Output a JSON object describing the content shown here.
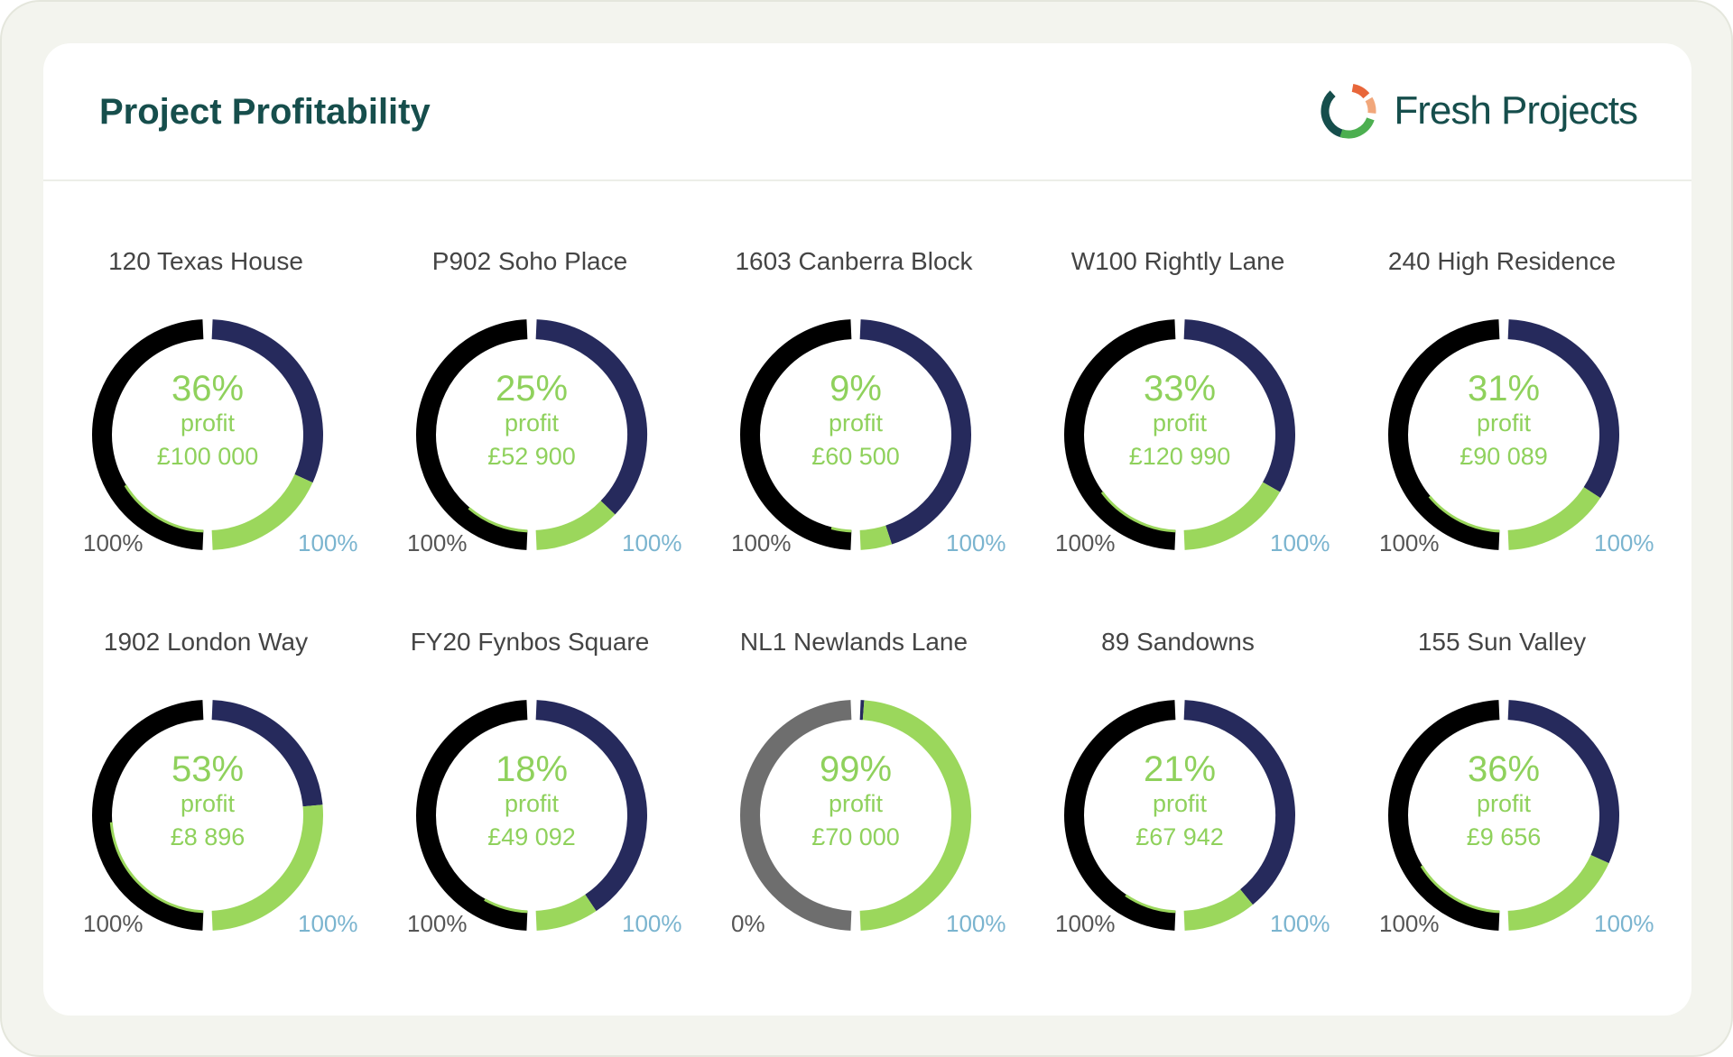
{
  "header": {
    "title": "Project Profitability",
    "brand_name": "Fresh Projects",
    "brand_icon": "fresh-projects-ring-logo"
  },
  "colors": {
    "cost": "#000000",
    "remaining": "#262a5c",
    "profit": "#9bd75c",
    "zero_cost": "#6e6e6e",
    "text_green": "#8fd15c",
    "title": "#164e4c"
  },
  "chart_data": [
    {
      "type": "pie",
      "title": "120 Texas House",
      "profit_pct": 36,
      "profit_label": "36%",
      "profit_amount": "£100 000",
      "label": "profit",
      "left_label": "100%",
      "right_label": "100%",
      "cost_pct": 100,
      "navy_pct": 64,
      "green_pct": 36
    },
    {
      "type": "pie",
      "title": "P902 Soho Place",
      "profit_pct": 25,
      "profit_label": "25%",
      "profit_amount": "£52 900",
      "label": "profit",
      "left_label": "100%",
      "right_label": "100%",
      "cost_pct": 100,
      "navy_pct": 75,
      "green_pct": 25
    },
    {
      "type": "pie",
      "title": "1603 Canberra Block",
      "profit_pct": 9,
      "profit_label": "9%",
      "profit_amount": "£60 500",
      "label": "profit",
      "left_label": "100%",
      "right_label": "100%",
      "cost_pct": 100,
      "navy_pct": 91,
      "green_pct": 9
    },
    {
      "type": "pie",
      "title": "W100 Rightly Lane",
      "profit_pct": 33,
      "profit_label": "33%",
      "profit_amount": "£120 990",
      "label": "profit",
      "left_label": "100%",
      "right_label": "100%",
      "cost_pct": 100,
      "navy_pct": 67,
      "green_pct": 33
    },
    {
      "type": "pie",
      "title": "240 High Residence",
      "profit_pct": 31,
      "profit_label": "31%",
      "profit_amount": "£90 089",
      "label": "profit",
      "left_label": "100%",
      "right_label": "100%",
      "cost_pct": 100,
      "navy_pct": 69,
      "green_pct": 31
    },
    {
      "type": "pie",
      "title": "1902 London Way",
      "profit_pct": 53,
      "profit_label": "53%",
      "profit_amount": "£8 896",
      "label": "profit",
      "left_label": "100%",
      "right_label": "100%",
      "cost_pct": 100,
      "navy_pct": 47,
      "green_pct": 53
    },
    {
      "type": "pie",
      "title": "FY20 Fynbos Square",
      "profit_pct": 18,
      "profit_label": "18%",
      "profit_amount": "£49 092",
      "label": "profit",
      "left_label": "100%",
      "right_label": "100%",
      "cost_pct": 100,
      "navy_pct": 82,
      "green_pct": 18
    },
    {
      "type": "pie",
      "title": "NL1 Newlands Lane",
      "profit_pct": 99,
      "profit_label": "99%",
      "profit_amount": "£70 000",
      "label": "profit",
      "left_label": "0%",
      "right_label": "100%",
      "cost_pct": 0,
      "navy_pct": 1,
      "green_pct": 99
    },
    {
      "type": "pie",
      "title": "89 Sandowns",
      "profit_pct": 21,
      "profit_label": "21%",
      "profit_amount": "£67 942",
      "label": "profit",
      "left_label": "100%",
      "right_label": "100%",
      "cost_pct": 100,
      "navy_pct": 79,
      "green_pct": 21
    },
    {
      "type": "pie",
      "title": "155 Sun Valley",
      "profit_pct": 36,
      "profit_label": "36%",
      "profit_amount": "£9 656",
      "label": "profit",
      "left_label": "100%",
      "right_label": "100%",
      "cost_pct": 100,
      "navy_pct": 64,
      "green_pct": 36
    }
  ]
}
